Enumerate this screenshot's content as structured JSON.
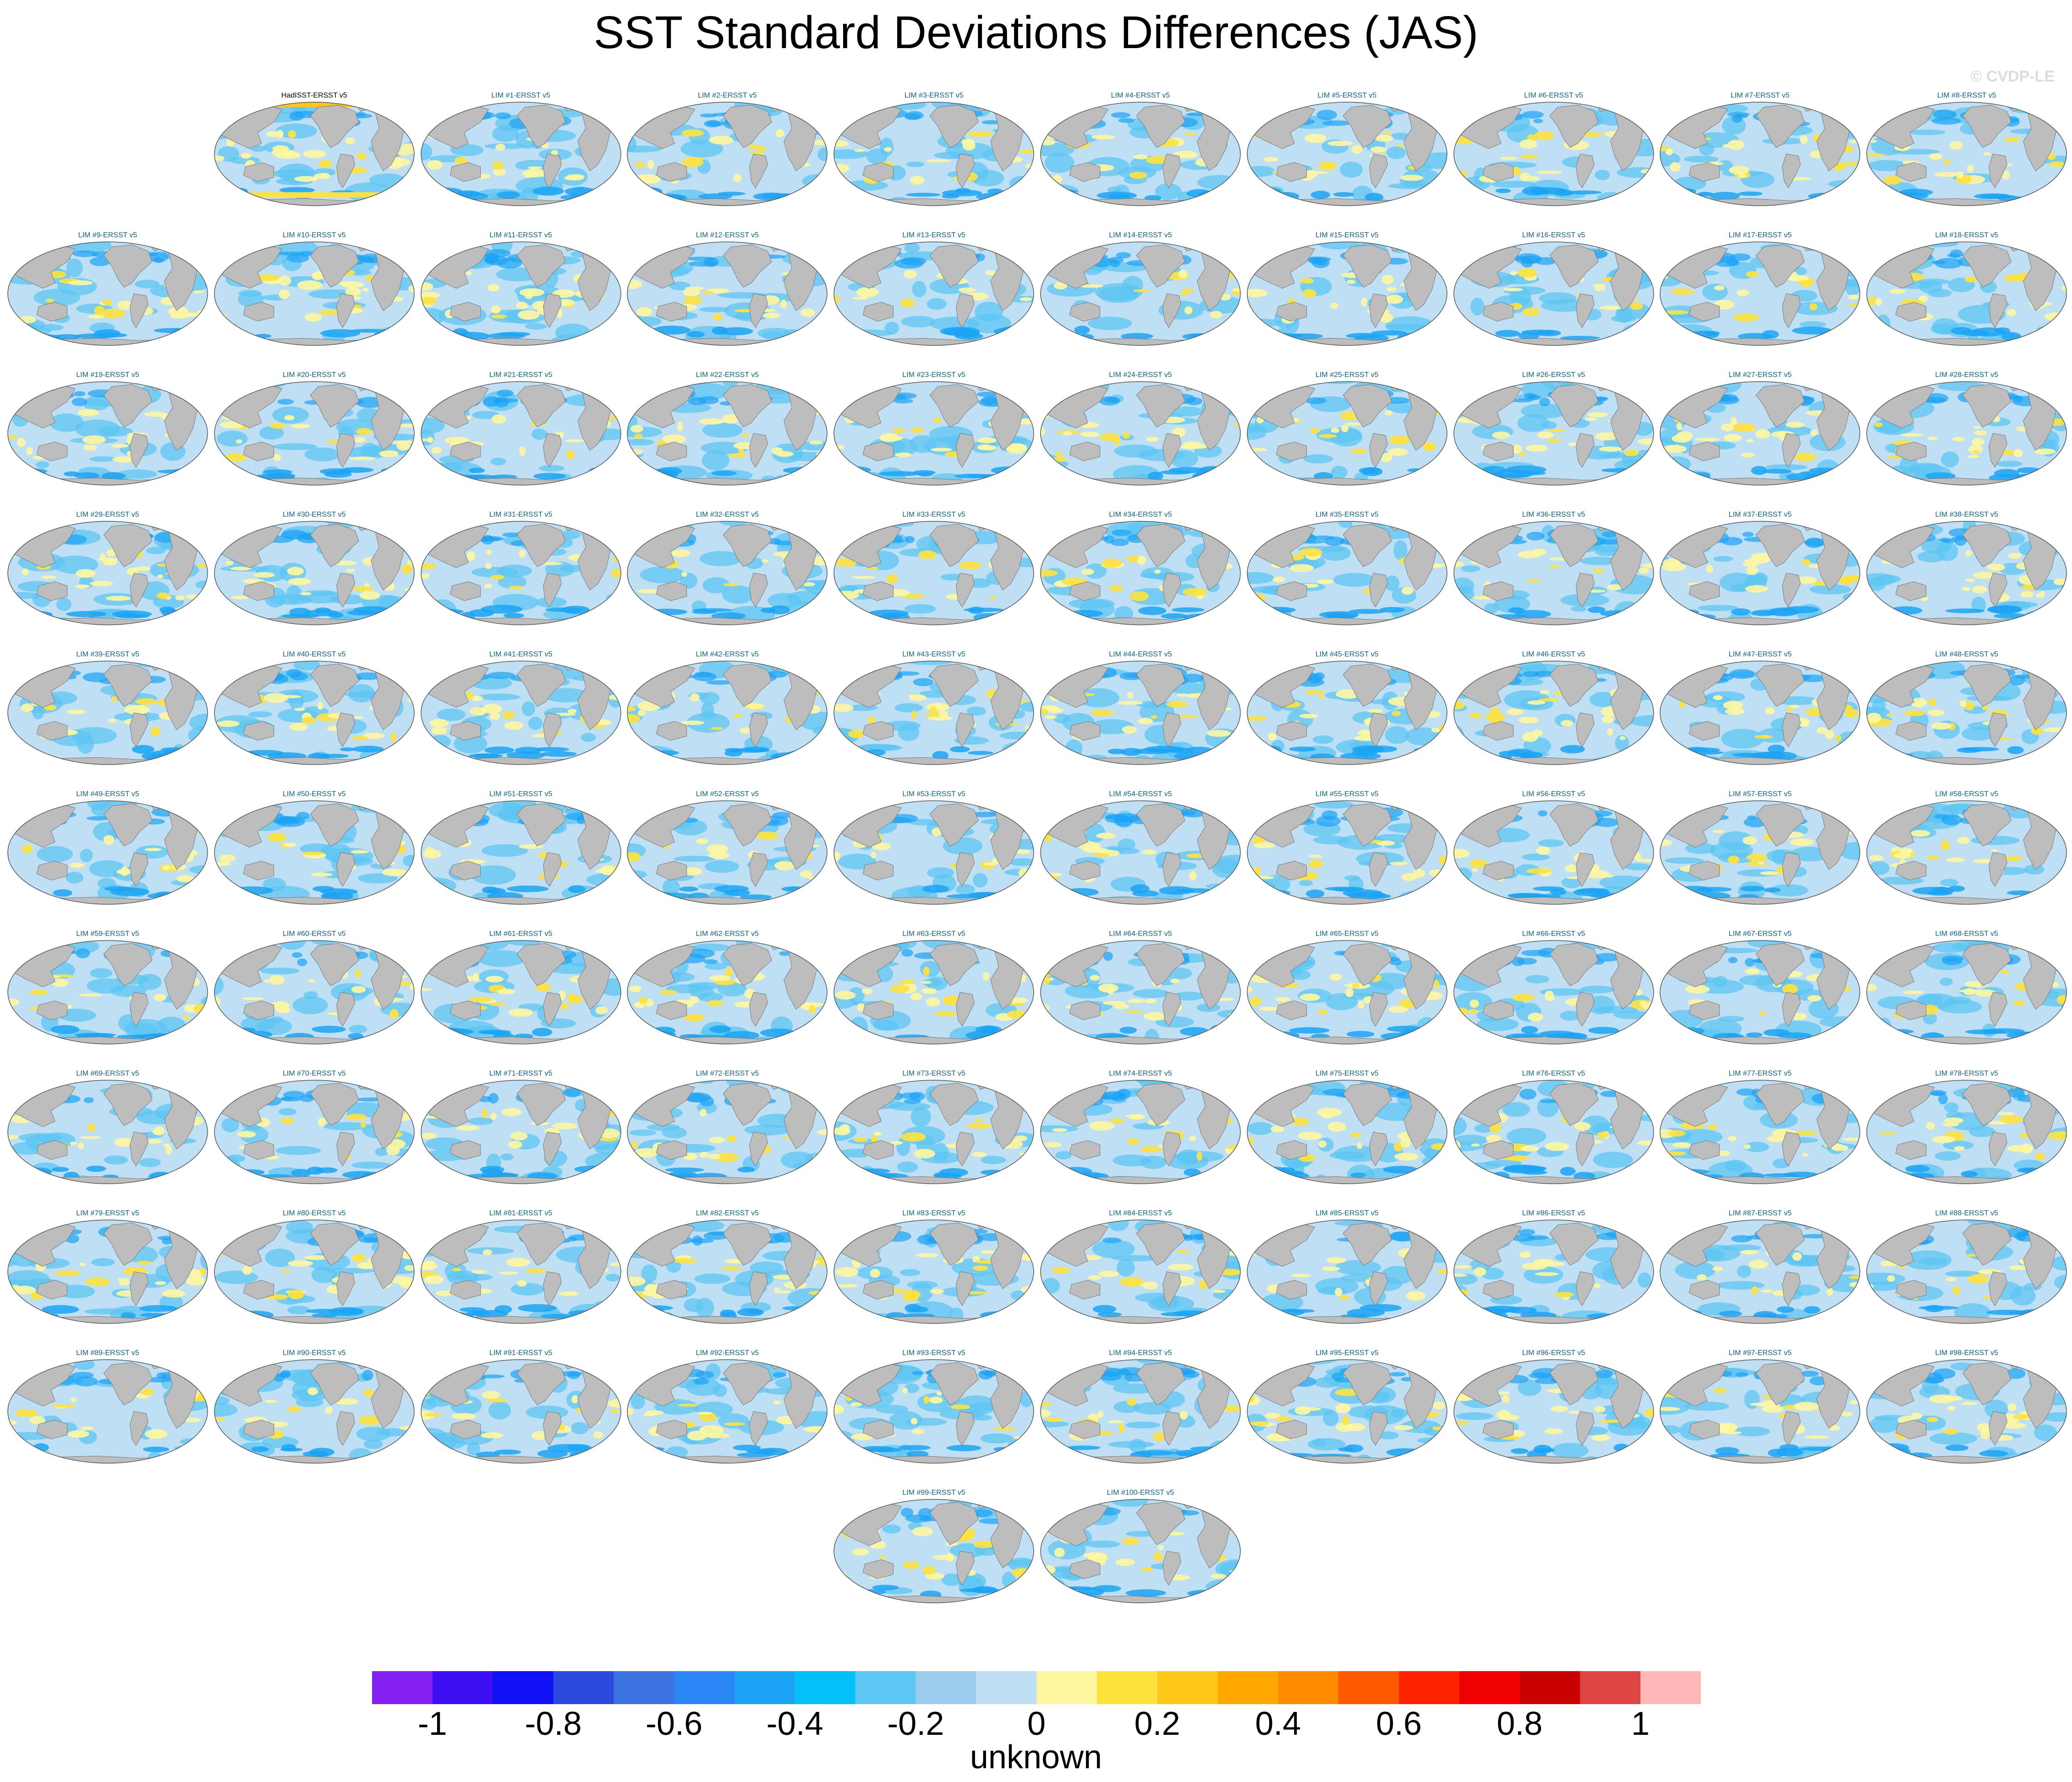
{
  "title": "SST Standard Deviations Differences (JAS)",
  "watermark": "© CVDP-LE",
  "units_label": "unknown",
  "panels": {
    "reference_title": "HadISST-ERSST v5",
    "member_prefix": "LIM #",
    "member_suffix": "-ERSST v5",
    "member_count": 100
  },
  "colorbar": {
    "colors": [
      "#8320f0",
      "#3b0ff2",
      "#1010f5",
      "#2d4ade",
      "#3b74e0",
      "#2a87f5",
      "#1ba3f5",
      "#04c0f9",
      "#5ec6f3",
      "#9ccdec",
      "#bfe0f4",
      "#fff7a0",
      "#ffe23e",
      "#ffc61a",
      "#ffa700",
      "#ff8a00",
      "#ff5a00",
      "#ff2400",
      "#f00000",
      "#c80000",
      "#dd4545",
      "#ffb7b7"
    ],
    "tick_labels": [
      "-1",
      "-0.8",
      "-0.6",
      "-0.4",
      "-0.2",
      "0",
      "0.2",
      "0.4",
      "0.6",
      "0.8",
      "1"
    ]
  },
  "colors": {
    "land": "#bdbdbd",
    "ocean_base": "#bfe0f4",
    "ocean_mid": "#5ec6f3",
    "ocean_strong": "#1ba3f5",
    "positive_weak": "#fff7a0",
    "positive_mid": "#ffe23e",
    "positive_strong": "#ffc61a",
    "member_title": "#0c6384"
  }
}
